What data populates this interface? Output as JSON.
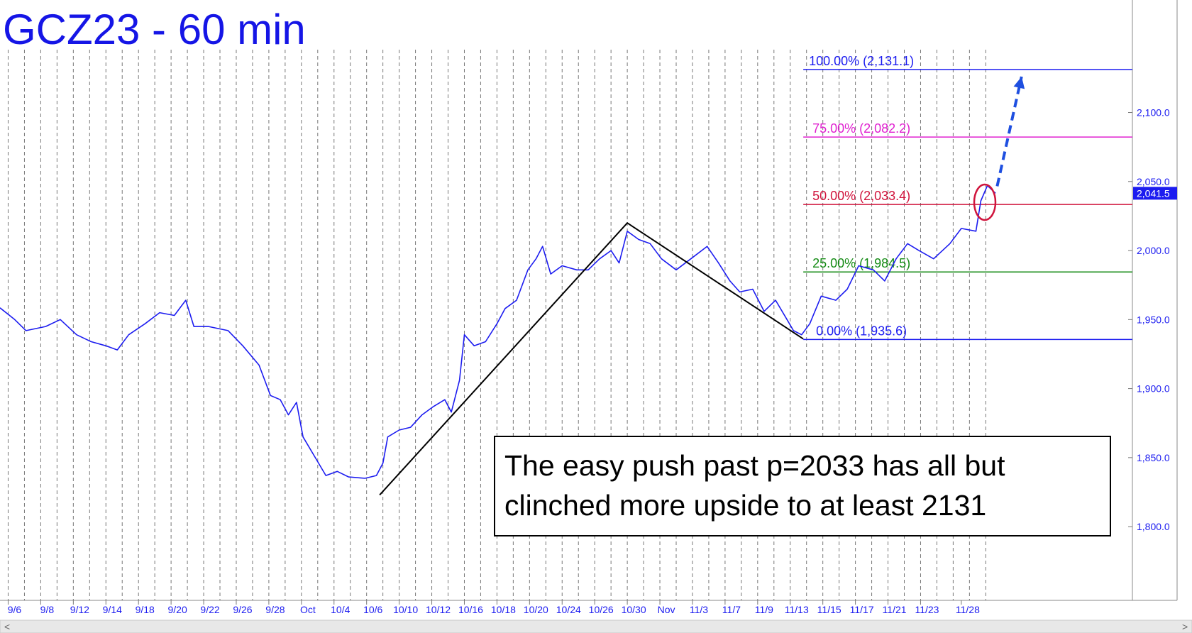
{
  "chart_data": {
    "type": "line",
    "title": "GCZ23 - 60 min",
    "xlim": [
      -0.5,
      69
    ],
    "ylim": [
      1746.6,
      2181.5
    ],
    "xticks": [
      {
        "value": 0,
        "label": "9/6"
      },
      {
        "value": 2,
        "label": "9/8"
      },
      {
        "value": 4,
        "label": "9/12"
      },
      {
        "value": 6,
        "label": "9/14"
      },
      {
        "value": 8,
        "label": "9/18"
      },
      {
        "value": 10,
        "label": "9/20"
      },
      {
        "value": 12,
        "label": "9/22"
      },
      {
        "value": 14,
        "label": "9/26"
      },
      {
        "value": 16,
        "label": "9/28"
      },
      {
        "value": 18,
        "label": "Oct"
      },
      {
        "value": 20,
        "label": "10/4"
      },
      {
        "value": 22,
        "label": "10/6"
      },
      {
        "value": 24,
        "label": "10/10"
      },
      {
        "value": 26,
        "label": "10/12"
      },
      {
        "value": 28,
        "label": "10/16"
      },
      {
        "value": 30,
        "label": "10/18"
      },
      {
        "value": 32,
        "label": "10/20"
      },
      {
        "value": 34,
        "label": "10/24"
      },
      {
        "value": 36,
        "label": "10/26"
      },
      {
        "value": 38,
        "label": "10/30"
      },
      {
        "value": 40,
        "label": "Nov"
      },
      {
        "value": 42,
        "label": "11/3"
      },
      {
        "value": 44,
        "label": "11/7"
      },
      {
        "value": 46,
        "label": "11/9"
      },
      {
        "value": 48,
        "label": "11/13"
      },
      {
        "value": 50,
        "label": "11/15"
      },
      {
        "value": 52,
        "label": "11/17"
      },
      {
        "value": 54,
        "label": "11/21"
      },
      {
        "value": 56,
        "label": "11/23"
      },
      {
        "value": 58.5,
        "label": "11/28"
      }
    ],
    "yticks": [
      {
        "value": 1800,
        "label": "1,800.0"
      },
      {
        "value": 1850,
        "label": "1,850.0"
      },
      {
        "value": 1900,
        "label": "1,900.0"
      },
      {
        "value": 1950,
        "label": "1,950.0"
      },
      {
        "value": 2000,
        "label": "2,000.0"
      },
      {
        "value": 2050,
        "label": "2,050.0"
      },
      {
        "value": 2100,
        "label": "2,100.0"
      }
    ],
    "series": [
      {
        "color": "#1c1cf0",
        "x": [
          -0.5,
          0.4,
          1.1,
          2.3,
          3.2,
          4.2,
          5.1,
          6.0,
          6.7,
          7.4,
          8.4,
          9.3,
          10.2,
          10.9,
          11.4,
          12.3,
          13.5,
          14.4,
          15.4,
          16.1,
          16.7,
          17.2,
          17.7,
          18.1,
          18.8,
          19.5,
          20.2,
          20.9,
          21.9,
          22.6,
          23.0,
          23.3,
          24.0,
          24.7,
          25.4,
          26.1,
          26.8,
          27.2,
          27.7,
          28.0,
          28.6,
          29.3,
          30.0,
          30.5,
          31.2,
          31.9,
          32.4,
          32.8,
          33.3,
          34.0,
          34.9,
          35.6,
          36.3,
          37.0,
          37.5,
          38.0,
          38.7,
          39.4,
          40.1,
          41.0,
          41.9,
          42.9,
          43.6,
          44.3,
          44.9,
          45.7,
          46.4,
          47.1,
          47.8,
          48.2,
          48.7,
          49.2,
          49.9,
          50.8,
          51.5,
          52.2,
          53.1,
          53.8,
          54.5,
          55.2,
          55.9,
          56.8,
          57.8,
          58.5,
          59.4,
          59.7,
          60.1,
          60.6
        ],
        "values": [
          1958.5,
          1950,
          1942,
          1945,
          1950,
          1939,
          1934,
          1931,
          1928,
          1939,
          1947,
          1955,
          1953,
          1964,
          1945,
          1945,
          1942,
          1931,
          1917,
          1895,
          1892,
          1881,
          1890,
          1865,
          1851,
          1837,
          1840,
          1836,
          1835,
          1837,
          1846,
          1865,
          1870,
          1872,
          1881,
          1887,
          1892,
          1883,
          1906,
          1939,
          1931,
          1934,
          1947,
          1958,
          1964,
          1986,
          1994,
          2003,
          1983,
          1989,
          1986,
          1986,
          1994,
          2000,
          1991,
          2014,
          2008,
          2005,
          1994,
          1986,
          1994,
          2003,
          1991,
          1978,
          1970,
          1972,
          1956,
          1964,
          1950,
          1942,
          1939,
          1947,
          1967,
          1964,
          1972,
          1989,
          1986,
          1978,
          1994,
          2005,
          2000,
          1994,
          2005,
          2016,
          2014,
          2036,
          2047,
          2041.5
        ]
      }
    ],
    "last_price": {
      "value": 2041.5,
      "label": "2,041.5"
    },
    "fib_x_start": 48.8,
    "fib_levels": [
      {
        "label": "100.00% (2,131.1)",
        "value": 2131.1,
        "color": "#1c1cf0"
      },
      {
        "label": "75.00% (2,082.2)",
        "value": 2082.2,
        "color": "#e020d0"
      },
      {
        "label": "50.00% (2,033.4)",
        "value": 2033.4,
        "color": "#d0143c"
      },
      {
        "label": "25.00% (1,984.5)",
        "value": 1984.5,
        "color": "#138a13"
      },
      {
        "label": "0.00% (1,935.6)",
        "value": 1935.6,
        "color": "#1c1cf0"
      }
    ],
    "trendline": {
      "x": [
        22.8,
        38.0,
        48.8
      ],
      "values": [
        1823,
        2020,
        1936
      ],
      "color": "#000000"
    },
    "projection": {
      "x": [
        60.7,
        62.2
      ],
      "values": [
        2046.6,
        2126
      ],
      "color": "#1e4fe0"
    },
    "annotation": [
      "The easy push past p=2033 has all but",
      "clinched more upside to at least 2131"
    ]
  }
}
